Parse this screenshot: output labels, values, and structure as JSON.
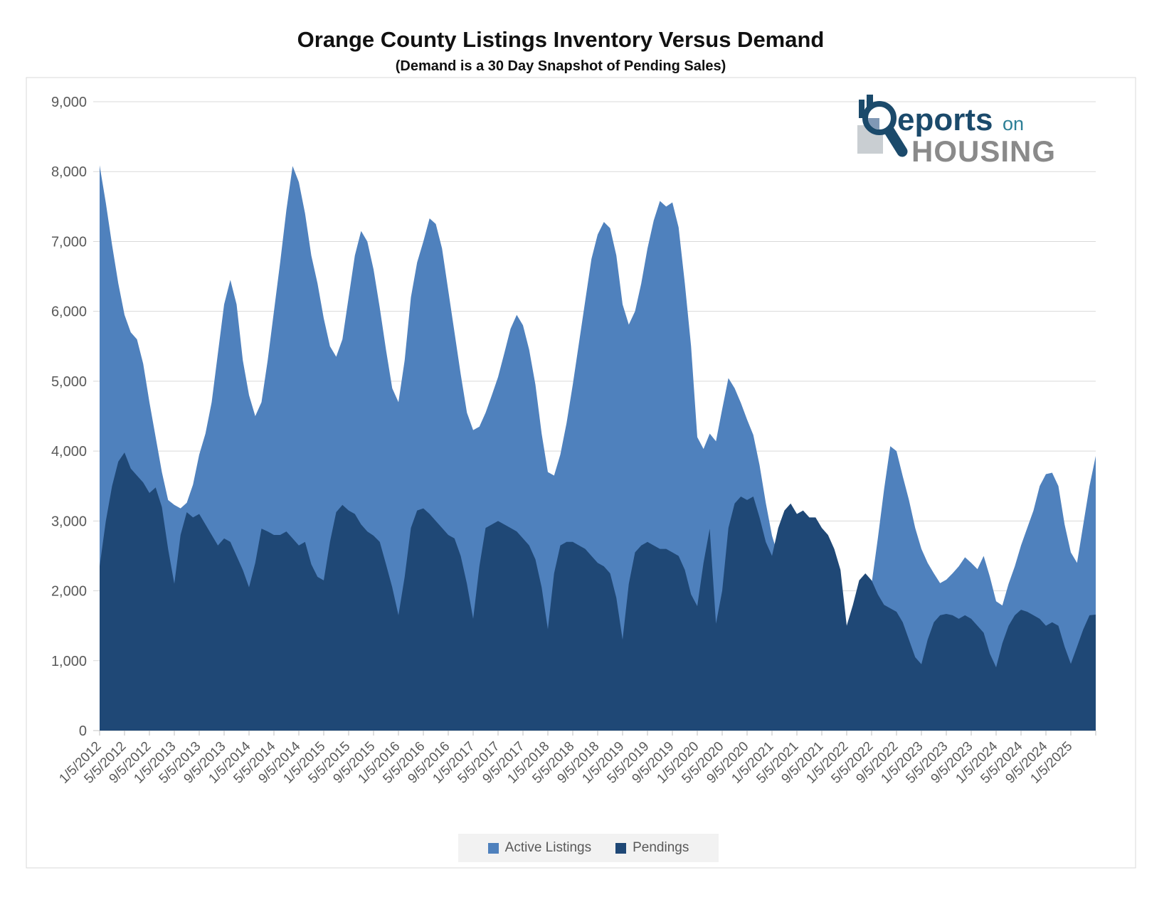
{
  "page": {
    "title": "Orange County Listings Inventory Versus Demand",
    "subtitle": "(Demand is a 30 Day Snapshot of Pending Sales)"
  },
  "logo": {
    "reports": "eports",
    "on": "on",
    "housing": "HOUSING",
    "navy": "#1B4A6B",
    "teal": "#2D7F96",
    "gray": "#8A8A8A"
  },
  "chart_data": {
    "type": "area",
    "title": "Orange County Listings Inventory Versus Demand",
    "subtitle": "(Demand is a 30 Day Snapshot of Pending Sales)",
    "x_unit": "month",
    "x_start_label": "1/5/2012",
    "x_end": "5/5/2025",
    "label_every": 4,
    "ylim": [
      0,
      9000
    ],
    "y_tick_step": 1000,
    "grid": true,
    "legend_position": "bottom",
    "axis_text_color": "#595959",
    "grid_color": "#D9D9D9",
    "x_tick_labels": [
      "1/5/2012",
      "5/5/2012",
      "9/5/2012",
      "1/5/2013",
      "5/5/2013",
      "9/5/2013",
      "1/5/2014",
      "5/5/2014",
      "9/5/2014",
      "1/5/2015",
      "5/5/2015",
      "9/5/2015",
      "1/5/2016",
      "5/5/2016",
      "9/5/2016",
      "1/5/2017",
      "5/5/2017",
      "9/5/2017",
      "1/5/2018",
      "5/5/2018",
      "9/5/2018",
      "1/5/2019",
      "5/5/2019",
      "9/5/2019",
      "1/5/2020",
      "5/5/2020",
      "9/5/2020",
      "1/5/2021",
      "5/5/2021",
      "9/5/2021",
      "1/5/2022",
      "5/5/2022",
      "9/5/2022",
      "1/5/2023",
      "5/5/2023",
      "9/5/2023",
      "1/5/2024",
      "5/5/2024",
      "9/5/2024",
      "1/5/2025"
    ],
    "series": [
      {
        "name": "Active Listings",
        "color": "#4F81BD",
        "values": [
          8090,
          7550,
          6950,
          6400,
          5950,
          5700,
          5600,
          5250,
          4700,
          4200,
          3700,
          3300,
          3230,
          3180,
          3260,
          3520,
          3950,
          4250,
          4700,
          5400,
          6100,
          6450,
          6100,
          5300,
          4800,
          4500,
          4700,
          5300,
          6000,
          6700,
          7450,
          8080,
          7850,
          7400,
          6800,
          6400,
          5900,
          5500,
          5350,
          5600,
          6200,
          6800,
          7150,
          7000,
          6600,
          6050,
          5450,
          4900,
          4700,
          5300,
          6200,
          6700,
          7000,
          7330,
          7250,
          6900,
          6300,
          5700,
          5100,
          4550,
          4300,
          4350,
          4550,
          4800,
          5060,
          5400,
          5750,
          5950,
          5800,
          5450,
          4950,
          4250,
          3700,
          3650,
          3950,
          4400,
          4950,
          5550,
          6150,
          6750,
          7100,
          7280,
          7190,
          6800,
          6100,
          5810,
          6000,
          6400,
          6900,
          7300,
          7580,
          7500,
          7560,
          7200,
          6400,
          5500,
          4200,
          4030,
          4250,
          4140,
          4600,
          5045,
          4900,
          4690,
          4450,
          4230,
          3800,
          3260,
          2790,
          2500,
          2400,
          2500,
          2600,
          2650,
          2700,
          2650,
          2550,
          2350,
          2000,
          1700,
          1400,
          1250,
          1300,
          1550,
          2100,
          2750,
          3450,
          4070,
          4000,
          3640,
          3300,
          2900,
          2600,
          2400,
          2250,
          2110,
          2160,
          2250,
          2350,
          2480,
          2400,
          2310,
          2500,
          2200,
          1850,
          1790,
          2100,
          2350,
          2650,
          2900,
          3150,
          3500,
          3670,
          3690,
          3500,
          2950,
          2550,
          2400,
          2950,
          3500,
          3930
        ]
      },
      {
        "name": "Pendings",
        "color": "#1F4876",
        "values": [
          2350,
          3000,
          3500,
          3850,
          3980,
          3750,
          3650,
          3550,
          3400,
          3480,
          3200,
          2600,
          2100,
          2800,
          3125,
          3050,
          3100,
          2950,
          2800,
          2650,
          2750,
          2700,
          2500,
          2300,
          2050,
          2400,
          2890,
          2850,
          2800,
          2800,
          2850,
          2750,
          2650,
          2700,
          2380,
          2200,
          2150,
          2700,
          3125,
          3230,
          3150,
          3100,
          2950,
          2850,
          2790,
          2700,
          2380,
          2050,
          1650,
          2200,
          2900,
          3150,
          3180,
          3100,
          3000,
          2900,
          2800,
          2750,
          2500,
          2100,
          1600,
          2350,
          2900,
          2950,
          3000,
          2950,
          2900,
          2850,
          2750,
          2650,
          2450,
          2050,
          1450,
          2250,
          2650,
          2700,
          2700,
          2650,
          2600,
          2500,
          2400,
          2350,
          2250,
          1900,
          1300,
          2100,
          2550,
          2650,
          2700,
          2650,
          2600,
          2600,
          2550,
          2500,
          2300,
          1950,
          1780,
          2400,
          2890,
          1530,
          2000,
          2900,
          3250,
          3350,
          3300,
          3350,
          3050,
          2700,
          2500,
          2900,
          3150,
          3250,
          3100,
          3150,
          3050,
          3050,
          2900,
          2800,
          2600,
          2300,
          1500,
          1800,
          2150,
          2250,
          2150,
          1950,
          1800,
          1750,
          1700,
          1550,
          1300,
          1050,
          950,
          1300,
          1550,
          1650,
          1670,
          1650,
          1600,
          1650,
          1600,
          1500,
          1400,
          1100,
          905,
          1250,
          1500,
          1650,
          1730,
          1700,
          1650,
          1600,
          1500,
          1550,
          1500,
          1200,
          955,
          1200,
          1450,
          1650,
          1660
        ]
      }
    ]
  }
}
